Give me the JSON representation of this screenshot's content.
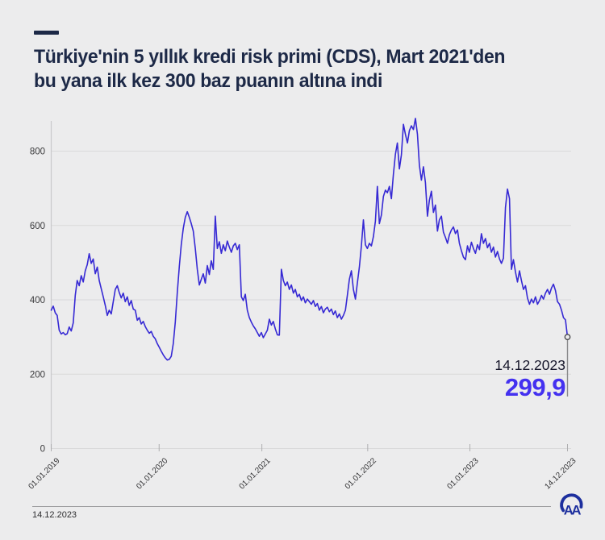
{
  "page": {
    "background": "#ececed"
  },
  "header": {
    "title_line1": "Türkiye'nin 5 yıllık kredi risk primi (CDS), Mart 2021'den",
    "title_line2": "bu yana ilk kez 300 baz puanın altına indi"
  },
  "chart_data": {
    "type": "line",
    "title": "Türkiye 5 yıllık kredi risk primi (CDS)",
    "unit": "baz puan",
    "sampling": "weekly",
    "start_label": "01.01.2019",
    "end_label": "14.12.2023",
    "ylim": [
      0,
      900
    ],
    "yticks": [
      0,
      200,
      400,
      600,
      800
    ],
    "xticks": [
      {
        "label": "01.01.2019",
        "pos": 0
      },
      {
        "label": "01.01.2020",
        "pos": 0.209
      },
      {
        "label": "01.01.2021",
        "pos": 0.408
      },
      {
        "label": "01.01.2022",
        "pos": 0.613
      },
      {
        "label": "01.01.2023",
        "pos": 0.811
      },
      {
        "label": "14.12.2023",
        "pos": 1
      }
    ],
    "grid": true,
    "legend": "none",
    "line_color": "#3629d4",
    "values": [
      372,
      383,
      365,
      358,
      318,
      308,
      312,
      306,
      309,
      327,
      316,
      338,
      412,
      452,
      438,
      465,
      448,
      478,
      495,
      524,
      498,
      510,
      470,
      488,
      452,
      430,
      408,
      385,
      358,
      372,
      362,
      395,
      428,
      438,
      420,
      405,
      418,
      395,
      408,
      385,
      398,
      375,
      372,
      345,
      352,
      335,
      342,
      328,
      318,
      310,
      315,
      302,
      295,
      282,
      272,
      262,
      252,
      244,
      238,
      240,
      248,
      282,
      340,
      420,
      490,
      548,
      592,
      622,
      637,
      622,
      605,
      585,
      538,
      482,
      440,
      455,
      470,
      445,
      492,
      468,
      505,
      482,
      625,
      538,
      556,
      525,
      548,
      532,
      558,
      542,
      528,
      545,
      552,
      535,
      548,
      408,
      398,
      415,
      372,
      352,
      340,
      330,
      322,
      312,
      302,
      312,
      298,
      308,
      318,
      348,
      332,
      342,
      322,
      306,
      305,
      482,
      452,
      438,
      448,
      428,
      440,
      418,
      428,
      408,
      415,
      398,
      408,
      392,
      402,
      395,
      388,
      398,
      382,
      390,
      372,
      382,
      365,
      375,
      380,
      368,
      375,
      360,
      370,
      352,
      362,
      348,
      358,
      372,
      412,
      455,
      478,
      428,
      402,
      445,
      488,
      545,
      615,
      548,
      538,
      552,
      545,
      570,
      612,
      705,
      605,
      628,
      678,
      695,
      688,
      705,
      672,
      738,
      792,
      822,
      752,
      790,
      872,
      845,
      822,
      855,
      868,
      858,
      888,
      845,
      762,
      722,
      758,
      715,
      625,
      668,
      692,
      635,
      655,
      585,
      615,
      625,
      582,
      568,
      552,
      575,
      588,
      596,
      578,
      588,
      552,
      532,
      515,
      508,
      545,
      528,
      555,
      538,
      525,
      548,
      535,
      578,
      552,
      565,
      540,
      552,
      528,
      542,
      515,
      530,
      510,
      498,
      512,
      648,
      698,
      672,
      482,
      508,
      475,
      448,
      478,
      452,
      428,
      438,
      405,
      388,
      402,
      392,
      408,
      388,
      398,
      412,
      402,
      418,
      428,
      415,
      432,
      442,
      425,
      395,
      388,
      372,
      352,
      346,
      299.9
    ],
    "annotation": {
      "date": "14.12.2023",
      "value_label": "299,9",
      "value": 299.9,
      "color": "#4431f0"
    }
  },
  "footer": {
    "date": "14.12.2023",
    "logo_text": "AA",
    "logo_color": "#1d2f9e"
  }
}
